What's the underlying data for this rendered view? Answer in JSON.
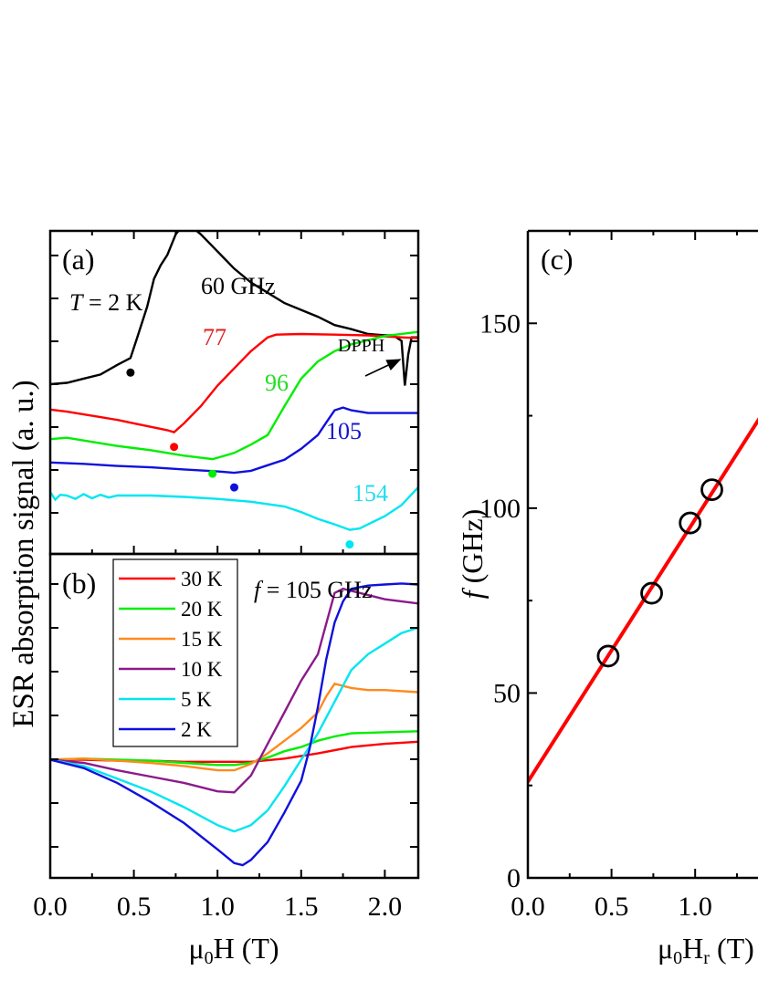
{
  "chart_data": [
    {
      "panel": "(a)",
      "type": "line",
      "annotations": {
        "temperature_prefix": "T",
        "temperature_suffix": " = 2 K",
        "dpph": "DPPH"
      },
      "xlim": [
        0,
        2.2
      ],
      "series": [
        {
          "name": "60 GHz",
          "color": "#000000",
          "label_color": "#000000",
          "resonance_dot": 0.48,
          "x": [
            0,
            0.1,
            0.2,
            0.3,
            0.4,
            0.48,
            0.52,
            0.58,
            0.62,
            0.66,
            0.7,
            0.75,
            0.8,
            0.85,
            0.9,
            1.0,
            1.1,
            1.2,
            1.3,
            1.4,
            1.5,
            1.6,
            1.7,
            1.8,
            1.9,
            2.0,
            2.05,
            2.1,
            2.12,
            2.14,
            2.16,
            2.2
          ],
          "y": [
            2.12,
            2.14,
            2.2,
            2.26,
            2.4,
            2.5,
            2.8,
            3.25,
            3.65,
            3.85,
            4.0,
            4.3,
            4.45,
            4.4,
            4.3,
            4.05,
            3.8,
            3.6,
            3.45,
            3.3,
            3.2,
            3.1,
            2.98,
            2.92,
            2.85,
            2.83,
            2.83,
            2.75,
            2.1,
            2.55,
            2.8,
            2.8
          ]
        },
        {
          "name": "77",
          "color": "#ff0000",
          "label_color": "#e02020",
          "resonance_dot": 0.74,
          "x": [
            0,
            0.1,
            0.2,
            0.3,
            0.4,
            0.5,
            0.6,
            0.7,
            0.74,
            0.8,
            0.9,
            1.0,
            1.1,
            1.2,
            1.3,
            1.35,
            1.5,
            1.7,
            1.9,
            2.1,
            2.2
          ],
          "y": [
            1.75,
            1.72,
            1.68,
            1.64,
            1.6,
            1.55,
            1.5,
            1.45,
            1.42,
            1.55,
            1.8,
            2.1,
            2.35,
            2.6,
            2.8,
            2.84,
            2.85,
            2.84,
            2.83,
            2.8,
            2.79
          ]
        },
        {
          "name": "96",
          "color": "#00ee00",
          "label_color": "#22dd22",
          "resonance_dot": 0.97,
          "x": [
            0,
            0.1,
            0.2,
            0.3,
            0.4,
            0.5,
            0.6,
            0.7,
            0.8,
            0.9,
            0.97,
            1.0,
            1.1,
            1.2,
            1.3,
            1.4,
            1.5,
            1.6,
            1.7,
            1.8,
            2.0,
            2.2
          ],
          "y": [
            1.32,
            1.34,
            1.3,
            1.26,
            1.22,
            1.19,
            1.16,
            1.12,
            1.08,
            1.05,
            1.03,
            1.05,
            1.12,
            1.24,
            1.38,
            1.8,
            2.2,
            2.45,
            2.6,
            2.7,
            2.82,
            2.88
          ]
        },
        {
          "name": "105",
          "color": "#1010dd",
          "label_color": "#1515cc",
          "resonance_dot": 1.1,
          "x": [
            0,
            0.2,
            0.4,
            0.6,
            0.8,
            1.0,
            1.1,
            1.2,
            1.3,
            1.4,
            1.5,
            1.6,
            1.65,
            1.7,
            1.75,
            1.8,
            1.9,
            2.0,
            2.2
          ],
          "y": [
            0.98,
            0.96,
            0.93,
            0.91,
            0.88,
            0.85,
            0.83,
            0.86,
            0.94,
            1.02,
            1.18,
            1.38,
            1.56,
            1.74,
            1.78,
            1.74,
            1.7,
            1.7,
            1.7
          ]
        },
        {
          "name": "154",
          "color": "#00e6f0",
          "label_color": "#22ddee",
          "resonance_dot": 1.79,
          "x": [
            0,
            0.03,
            0.06,
            0.1,
            0.15,
            0.2,
            0.25,
            0.3,
            0.35,
            0.4,
            0.6,
            0.8,
            1.0,
            1.2,
            1.4,
            1.5,
            1.6,
            1.7,
            1.79,
            1.85,
            1.9,
            2.0,
            2.1,
            2.2
          ],
          "y": [
            0.55,
            0.44,
            0.51,
            0.5,
            0.45,
            0.52,
            0.46,
            0.51,
            0.47,
            0.5,
            0.5,
            0.48,
            0.45,
            0.41,
            0.34,
            0.26,
            0.16,
            0.08,
            0.0,
            0.02,
            0.08,
            0.2,
            0.36,
            0.62
          ]
        }
      ]
    },
    {
      "panel": "(b)",
      "type": "line",
      "annotations": {
        "frequency_prefix": "f",
        "frequency_suffix": " = 105 GHz"
      },
      "xlim": [
        0,
        2.2
      ],
      "xlabel_prefix": "μ",
      "xlabel_sub": "0",
      "xlabel_suffix": "H (T)",
      "xticks": [
        "0.0",
        "0.5",
        "1.0",
        "1.5",
        "2.0"
      ],
      "series": [
        {
          "name": "30 K",
          "color": "#ff0000",
          "x": [
            0,
            0.2,
            0.4,
            0.6,
            0.8,
            1.0,
            1.2,
            1.4,
            1.6,
            1.8,
            2.0,
            2.2
          ],
          "y": [
            0,
            0,
            -0.01,
            -0.01,
            -0.02,
            -0.02,
            -0.02,
            0.01,
            0.06,
            0.12,
            0.15,
            0.17
          ]
        },
        {
          "name": "20 K",
          "color": "#00ee00",
          "x": [
            0,
            0.2,
            0.4,
            0.6,
            0.8,
            1.0,
            1.1,
            1.2,
            1.3,
            1.4,
            1.5,
            1.6,
            1.7,
            1.8,
            2.0,
            2.2
          ],
          "y": [
            0,
            0.01,
            0,
            -0.01,
            -0.03,
            -0.05,
            -0.05,
            -0.03,
            0.02,
            0.08,
            0.12,
            0.18,
            0.22,
            0.25,
            0.26,
            0.27
          ]
        },
        {
          "name": "15 K",
          "color": "#ff8a1f",
          "x": [
            0,
            0.2,
            0.4,
            0.6,
            0.8,
            1.0,
            1.1,
            1.2,
            1.3,
            1.4,
            1.5,
            1.6,
            1.65,
            1.7,
            1.8,
            1.9,
            2.0,
            2.2
          ],
          "y": [
            0,
            0.01,
            -0.01,
            -0.03,
            -0.06,
            -0.1,
            -0.1,
            -0.04,
            0.06,
            0.18,
            0.3,
            0.45,
            0.6,
            0.72,
            0.68,
            0.66,
            0.66,
            0.64
          ]
        },
        {
          "name": "10 K",
          "color": "#8b1a8b",
          "x": [
            0,
            0.2,
            0.4,
            0.6,
            0.8,
            1.0,
            1.1,
            1.2,
            1.3,
            1.4,
            1.5,
            1.6,
            1.7,
            1.75,
            1.8,
            1.9,
            2.0,
            2.2
          ],
          "y": [
            0,
            -0.03,
            -0.1,
            -0.16,
            -0.22,
            -0.3,
            -0.31,
            -0.15,
            0.15,
            0.45,
            0.75,
            1.0,
            1.58,
            1.62,
            1.6,
            1.56,
            1.52,
            1.48
          ]
        },
        {
          "name": "5 K",
          "color": "#00e6f0",
          "x": [
            0,
            0.2,
            0.4,
            0.6,
            0.8,
            1.0,
            1.1,
            1.2,
            1.3,
            1.4,
            1.5,
            1.6,
            1.7,
            1.8,
            1.9,
            2.0,
            2.1,
            2.2
          ],
          "y": [
            0,
            -0.06,
            -0.18,
            -0.3,
            -0.45,
            -0.62,
            -0.68,
            -0.62,
            -0.48,
            -0.25,
            0.0,
            0.25,
            0.55,
            0.85,
            1.0,
            1.1,
            1.2,
            1.25
          ]
        },
        {
          "name": "2 K",
          "color": "#1010dd",
          "x": [
            0,
            0.2,
            0.4,
            0.6,
            0.8,
            1.0,
            1.1,
            1.15,
            1.2,
            1.3,
            1.4,
            1.5,
            1.55,
            1.6,
            1.65,
            1.7,
            1.75,
            1.8,
            1.9,
            2.0,
            2.1,
            2.2
          ],
          "y": [
            0,
            -0.08,
            -0.22,
            -0.4,
            -0.6,
            -0.85,
            -0.98,
            -1.0,
            -0.95,
            -0.78,
            -0.5,
            -0.2,
            0.1,
            0.5,
            0.95,
            1.3,
            1.5,
            1.62,
            1.65,
            1.66,
            1.67,
            1.66
          ]
        }
      ]
    },
    {
      "panel": "(c)",
      "type": "scatter",
      "xlim": [
        0,
        2.2
      ],
      "ylim": [
        0,
        175
      ],
      "xlabel_prefix": "μ",
      "xlabel_sub": "0",
      "xlabel_mid": "H",
      "xlabel_sub2": "r",
      "xlabel_suffix": " (T)",
      "ylabel_prefix": "f",
      "ylabel_suffix": " (GHz)",
      "xticks": [
        "0.0",
        "0.5",
        "1.0"
      ],
      "yticks": [
        "0",
        "50",
        "100",
        "150"
      ],
      "points": [
        {
          "x": 0.48,
          "y": 60
        },
        {
          "x": 0.74,
          "y": 77
        },
        {
          "x": 0.97,
          "y": 96
        },
        {
          "x": 1.1,
          "y": 105
        }
      ],
      "fit": {
        "intercept": 26,
        "slope": 71,
        "color": "#ff0000"
      }
    }
  ],
  "shared_ylabel": "ESR absorption signal (a. u.)"
}
